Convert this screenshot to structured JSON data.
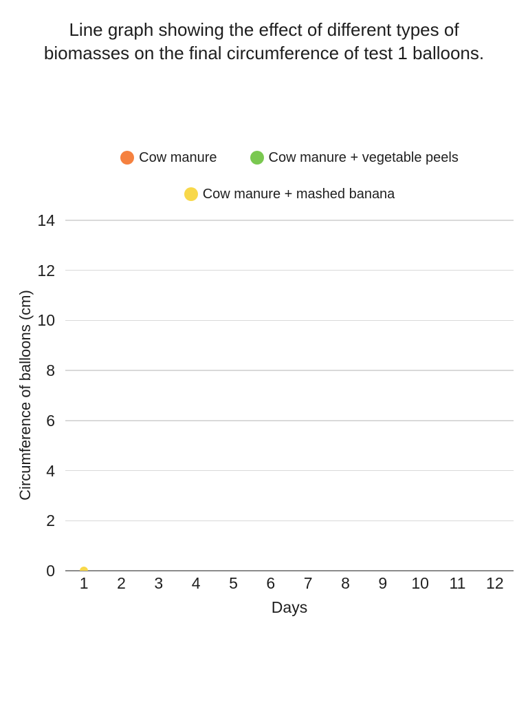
{
  "page": {
    "background_color": "#ffffff",
    "text_color": "#1e1e1e"
  },
  "chart_data": {
    "type": "line",
    "title": "Line graph showing the effect of different types of biomasses on the final circumference of test 1 balloons.",
    "xlabel": "Days",
    "ylabel": "Circumference of balloons (cm)",
    "x_ticks": [
      "1",
      "2",
      "3",
      "4",
      "5",
      "6",
      "7",
      "8",
      "9",
      "10",
      "11",
      "12"
    ],
    "y_ticks": [
      0,
      2,
      4,
      6,
      8,
      10,
      12,
      14
    ],
    "ylim": [
      0,
      14
    ],
    "grid": "horizontal",
    "grid_color": "#d9d9d9",
    "axis_line_color": "#8a8a8a",
    "legend_position": "top-center",
    "series": [
      {
        "name": "Cow manure",
        "color": "#F5813F",
        "points": []
      },
      {
        "name": "Cow manure + vegetable peels",
        "color": "#7AC850",
        "points": []
      },
      {
        "name": "Cow manure + mashed banana",
        "color": "#F8D84A",
        "points": [
          {
            "x": 1,
            "y": 0
          }
        ]
      }
    ]
  }
}
